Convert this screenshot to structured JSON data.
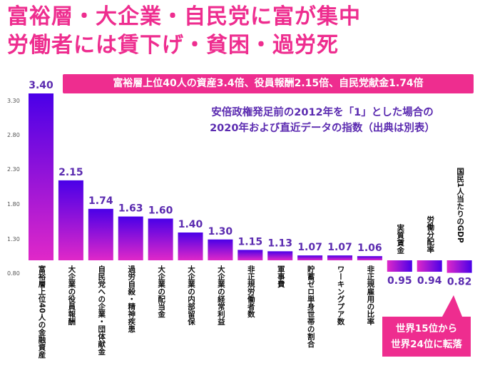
{
  "header": {
    "title_line1": "富裕層・大企業・自民党に富が集中",
    "title_line2": "労働者には賃下げ・貧困・過労死",
    "banner": "富裕層上位40人の資産3.4倍、役員報酬2.15倍、自民党献金1.74倍",
    "subtitle_line1": "安倍政権発足前の2012年を「1」とした場合の",
    "subtitle_line2": "2020年および直近データの指数（出典は別表）"
  },
  "note": {
    "line1": "世界15位から",
    "line2": "世界24位に転落"
  },
  "colors": {
    "title": "#ee2d8f",
    "accent": "#ee2d8f",
    "subtitle": "#5b2bb0",
    "bar_top": "#4a00e8",
    "bar_bottom": "#e028c8",
    "value_label": "#5b2bb0",
    "axis_text": "#555555"
  },
  "chart_data": {
    "type": "bar",
    "categories": [
      "富裕層上位40人の金融資産",
      "大企業の役員報酬",
      "自民党への企業・団体献金",
      "過労自殺・精神疾患",
      "大企業の配当金",
      "大企業の内部留保",
      "大企業の経常利益",
      "非正規労働者数",
      "軍事費",
      "貯蓄ゼロ単身世帯の割合",
      "ワーキングプア数",
      "非正規雇用の比率",
      "実質賃金",
      "労働分配率",
      "国民1人当たりのGDP"
    ],
    "values": [
      3.4,
      2.15,
      1.74,
      1.63,
      1.6,
      1.4,
      1.3,
      1.15,
      1.13,
      1.07,
      1.07,
      1.06,
      0.95,
      0.94,
      0.82
    ],
    "value_labels": [
      "3.40",
      "2.15",
      "1.74",
      "1.63",
      "1.60",
      "1.40",
      "1.30",
      "1.15",
      "1.13",
      "1.07",
      "1.07",
      "1.06",
      "0.95",
      "0.94",
      "0.82"
    ],
    "baseline": 1.0,
    "ylim": [
      0.8,
      3.4
    ],
    "yticks": [
      "3.30",
      "2.80",
      "2.30",
      "1.80",
      "1.30",
      "0.80"
    ],
    "ytick_values": [
      3.3,
      2.8,
      2.3,
      1.8,
      1.3,
      0.8
    ],
    "title": "",
    "xlabel": "",
    "ylabel": "",
    "grid": false
  }
}
